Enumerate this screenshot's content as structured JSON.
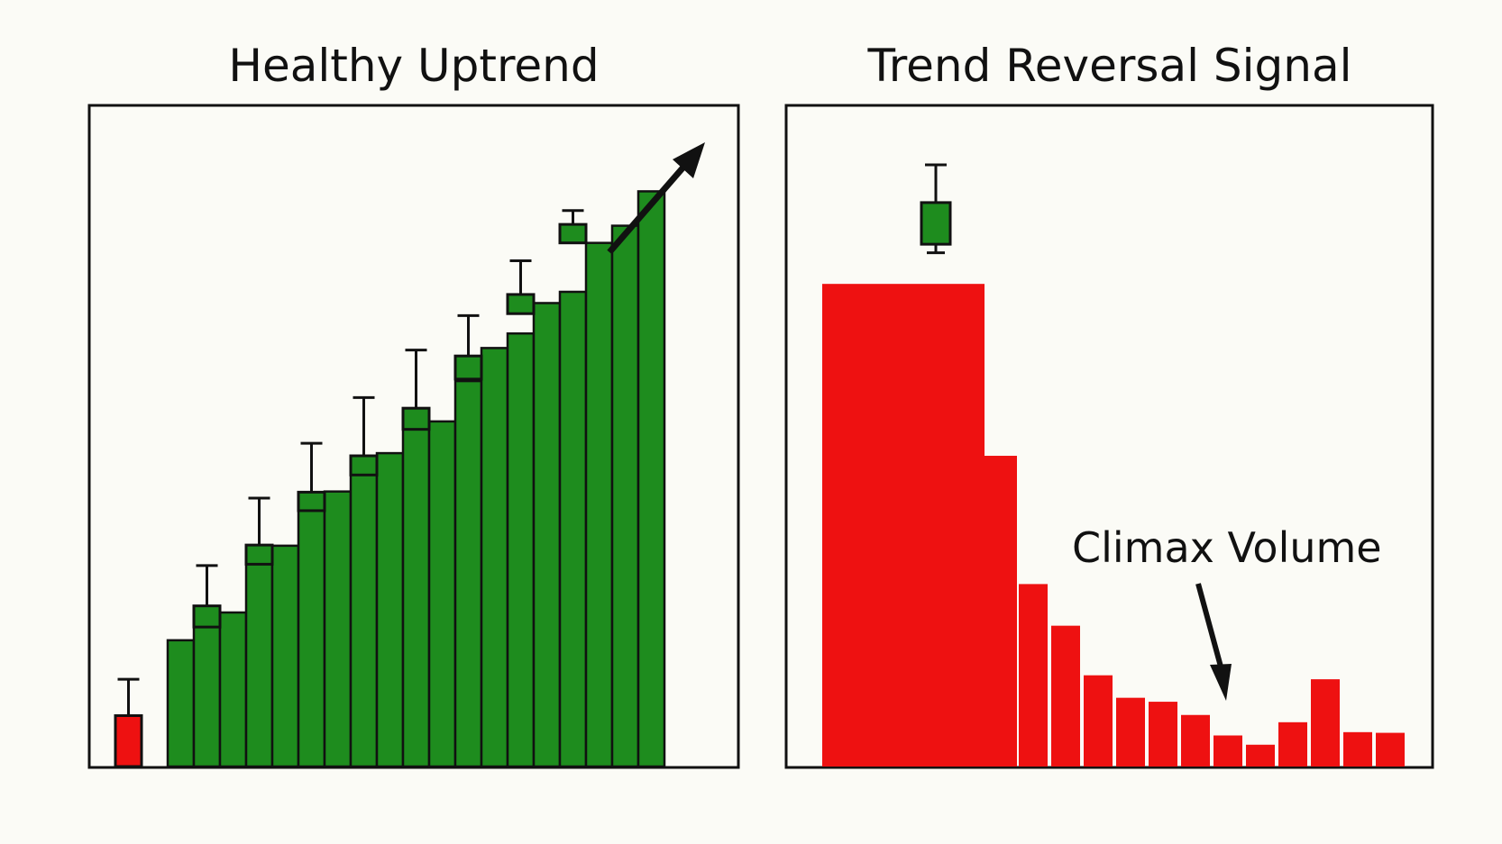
{
  "chart_data": [
    {
      "type": "bar",
      "title": "Healthy Uptrend",
      "colors": {
        "up": "#1e8c1e",
        "down": "#ee1111"
      },
      "ylim": [
        0,
        100
      ],
      "volume": [
        {
          "value": 7.7,
          "color": "red"
        },
        null,
        {
          "value": 19.1,
          "color": "green"
        },
        {
          "value": 23.3,
          "color": "green"
        },
        {
          "value": 23.3,
          "color": "green"
        },
        {
          "value": 31.6,
          "color": "green"
        },
        {
          "value": 33.4,
          "color": "green"
        },
        {
          "value": 39.9,
          "color": "green"
        },
        {
          "value": 41.6,
          "color": "green"
        },
        {
          "value": 44.3,
          "color": "green"
        },
        {
          "value": 47.4,
          "color": "green"
        },
        {
          "value": 51.5,
          "color": "green"
        },
        {
          "value": 52.2,
          "color": "green"
        },
        {
          "value": 58.3,
          "color": "green"
        },
        {
          "value": 63.3,
          "color": "green"
        },
        {
          "value": 65.5,
          "color": "green"
        },
        {
          "value": 70.1,
          "color": "green"
        },
        {
          "value": 71.8,
          "color": "green"
        },
        {
          "value": 79.2,
          "color": "green"
        },
        {
          "value": 81.8,
          "color": "green"
        },
        {
          "value": 87.0,
          "color": "green"
        }
      ],
      "candles": [
        {
          "slot": 0,
          "open": 0,
          "close": 7.7,
          "high": 13.2,
          "color": "red"
        },
        {
          "slot": 3,
          "open": 21.1,
          "close": 24.3,
          "high": 30.4,
          "color": "green"
        },
        {
          "slot": 5,
          "open": 30.6,
          "close": 33.5,
          "high": 40.6,
          "color": "green"
        },
        {
          "slot": 7,
          "open": 38.7,
          "close": 41.5,
          "high": 48.9,
          "color": "green"
        },
        {
          "slot": 9,
          "open": 44.1,
          "close": 47.0,
          "high": 55.8,
          "color": "green"
        },
        {
          "slot": 11,
          "open": 51.0,
          "close": 54.2,
          "high": 63.0,
          "color": "green"
        },
        {
          "slot": 13,
          "open": 58.6,
          "close": 62.1,
          "high": 68.2,
          "color": "green"
        },
        {
          "slot": 15,
          "open": 68.5,
          "close": 71.4,
          "high": 76.5,
          "color": "green"
        },
        {
          "slot": 17,
          "open": 79.2,
          "close": 82.0,
          "high": 84.1,
          "color": "green"
        }
      ],
      "annotations": [
        {
          "type": "arrow",
          "direction": "up-right",
          "text": ""
        }
      ]
    },
    {
      "type": "bar",
      "title": "Trend Reversal Signal",
      "colors": {
        "up": "#1e8c1e",
        "down": "#ee1111"
      },
      "ylim": [
        0,
        100
      ],
      "volume": [
        {
          "value": 73.0,
          "color": "red"
        },
        {
          "value": 73.0,
          "color": "red"
        },
        {
          "value": 73.0,
          "color": "red"
        },
        {
          "value": 73.0,
          "color": "red"
        },
        {
          "value": 73.0,
          "color": "red"
        },
        {
          "value": 47.0,
          "color": "red"
        },
        {
          "value": 27.6,
          "color": "red"
        },
        {
          "value": 21.3,
          "color": "red"
        },
        {
          "value": 13.8,
          "color": "red"
        },
        {
          "value": 10.4,
          "color": "red"
        },
        {
          "value": 9.8,
          "color": "red"
        },
        {
          "value": 7.8,
          "color": "red"
        },
        {
          "value": 4.7,
          "color": "red"
        },
        {
          "value": 3.3,
          "color": "red"
        },
        {
          "value": 6.7,
          "color": "red"
        },
        {
          "value": 13.2,
          "color": "red"
        },
        {
          "value": 5.2,
          "color": "red"
        },
        {
          "value": 5.1,
          "color": "red"
        }
      ],
      "candles": [
        {
          "slot": 3,
          "open": 79.0,
          "close": 85.3,
          "high": 91.0,
          "low": 77.7,
          "color": "green"
        }
      ],
      "annotations": [
        {
          "type": "arrow",
          "direction": "down",
          "text": "Climax Volume"
        }
      ]
    }
  ]
}
